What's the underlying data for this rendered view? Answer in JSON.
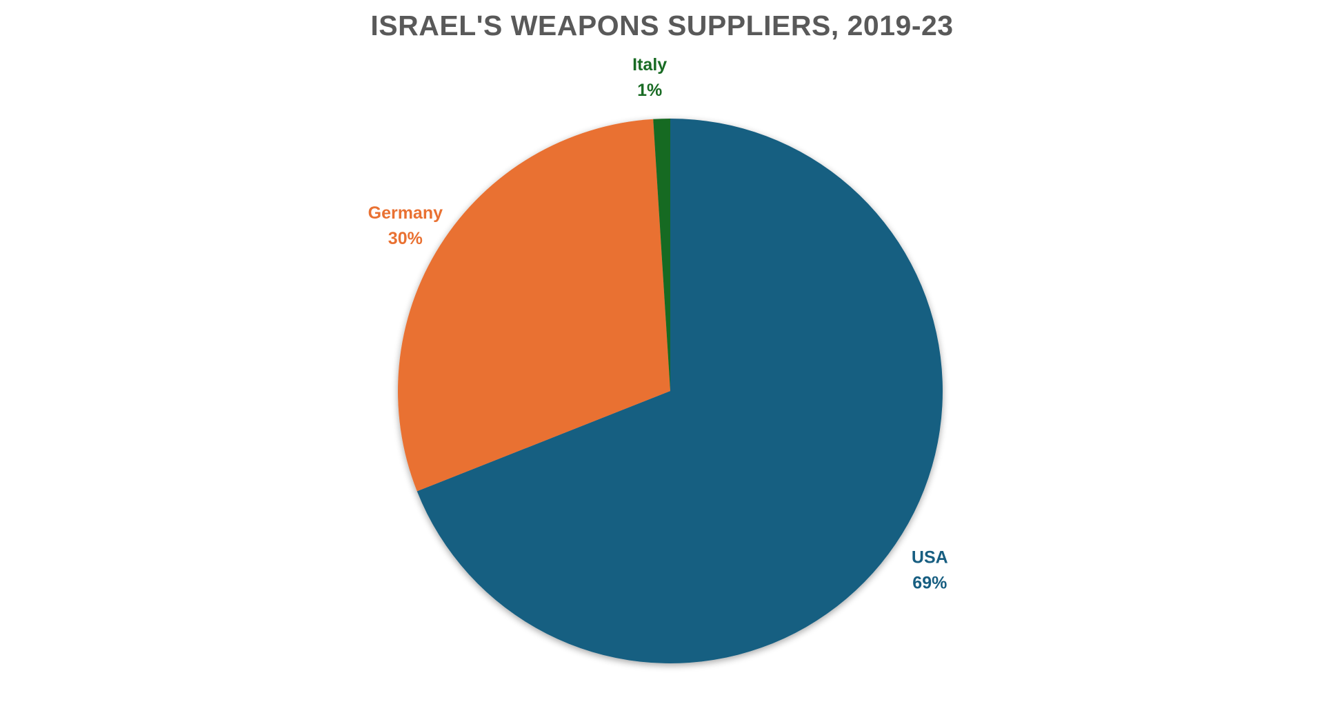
{
  "chart_data": {
    "type": "pie",
    "title": "ISRAEL'S  WEAPONS SUPPLIERS, 2019-23",
    "unit": "%",
    "start_angle_deg": 0,
    "direction": "clockwise",
    "legend": "none",
    "slices": [
      {
        "name": "USA",
        "value": 69,
        "color": "#175e81"
      },
      {
        "name": "Germany",
        "value": 30,
        "color": "#e97132"
      },
      {
        "name": "Italy",
        "value": 1,
        "color": "#196b24"
      }
    ]
  }
}
